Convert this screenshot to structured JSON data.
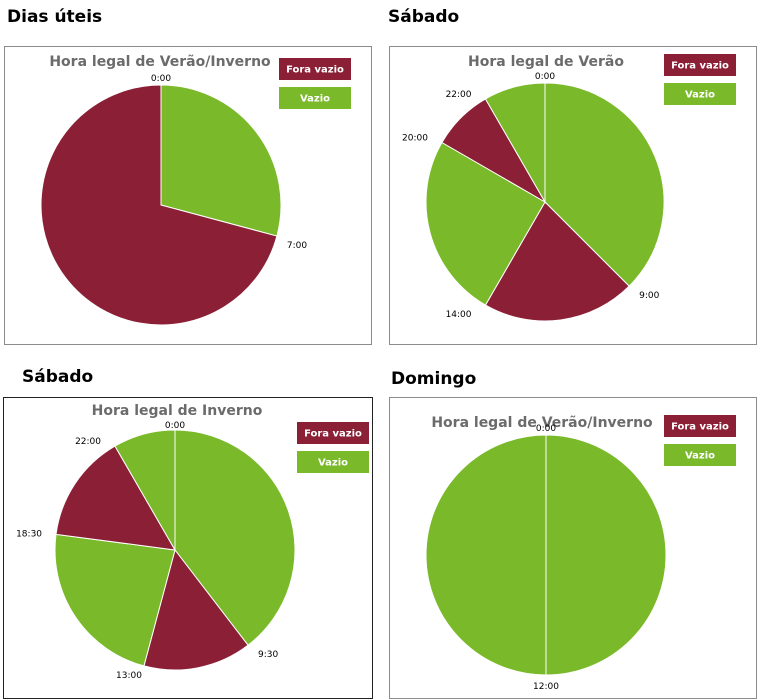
{
  "colors": {
    "fora_vazio": "#8b1f35",
    "vazio": "#7ab929"
  },
  "legend": {
    "fora_vazio": "Fora vazio",
    "vazio": "Vazio"
  },
  "headings": {
    "top_left": "Dias úteis",
    "top_right": "Sábado",
    "bottom_left": "Sábado",
    "bottom_right": "Domingo"
  },
  "chart_data": [
    {
      "type": "pie",
      "title": "Hora legal de Verão/Inverno",
      "unit": "hours (24h clock)",
      "segments": [
        {
          "start": 0,
          "end": 7,
          "category": "Vazio"
        },
        {
          "start": 7,
          "end": 24,
          "category": "Fora vazio"
        }
      ],
      "tick_labels": [
        {
          "hour": 0,
          "label": "0:00"
        },
        {
          "hour": 7,
          "label": "7:00"
        }
      ]
    },
    {
      "type": "pie",
      "title": "Hora legal de Verão",
      "unit": "hours (24h clock)",
      "segments": [
        {
          "start": 0,
          "end": 9,
          "category": "Vazio"
        },
        {
          "start": 9,
          "end": 14,
          "category": "Fora vazio"
        },
        {
          "start": 14,
          "end": 20,
          "category": "Vazio"
        },
        {
          "start": 20,
          "end": 22,
          "category": "Fora vazio"
        },
        {
          "start": 22,
          "end": 24,
          "category": "Vazio"
        }
      ],
      "tick_labels": [
        {
          "hour": 0,
          "label": "0:00"
        },
        {
          "hour": 9,
          "label": "9:00"
        },
        {
          "hour": 14,
          "label": "14:00"
        },
        {
          "hour": 20,
          "label": "20:00"
        },
        {
          "hour": 22,
          "label": "22:00"
        }
      ]
    },
    {
      "type": "pie",
      "title": "Hora legal de Inverno",
      "unit": "hours (24h clock)",
      "segments": [
        {
          "start": 0,
          "end": 9.5,
          "category": "Vazio"
        },
        {
          "start": 9.5,
          "end": 13,
          "category": "Fora vazio"
        },
        {
          "start": 13,
          "end": 18.5,
          "category": "Vazio"
        },
        {
          "start": 18.5,
          "end": 22,
          "category": "Fora vazio"
        },
        {
          "start": 22,
          "end": 24,
          "category": "Vazio"
        }
      ],
      "tick_labels": [
        {
          "hour": 0,
          "label": "0:00"
        },
        {
          "hour": 9.5,
          "label": "9:30"
        },
        {
          "hour": 13,
          "label": "13:00"
        },
        {
          "hour": 18.5,
          "label": "18:30"
        },
        {
          "hour": 22,
          "label": "22:00"
        }
      ]
    },
    {
      "type": "pie",
      "title": "Hora legal de Verão/Inverno",
      "unit": "hours (24h clock)",
      "segments": [
        {
          "start": 0,
          "end": 12,
          "category": "Vazio"
        },
        {
          "start": 12,
          "end": 24,
          "category": "Vazio"
        }
      ],
      "tick_labels": [
        {
          "hour": 0,
          "label": "0:00"
        },
        {
          "hour": 12,
          "label": "12:00"
        }
      ]
    }
  ]
}
